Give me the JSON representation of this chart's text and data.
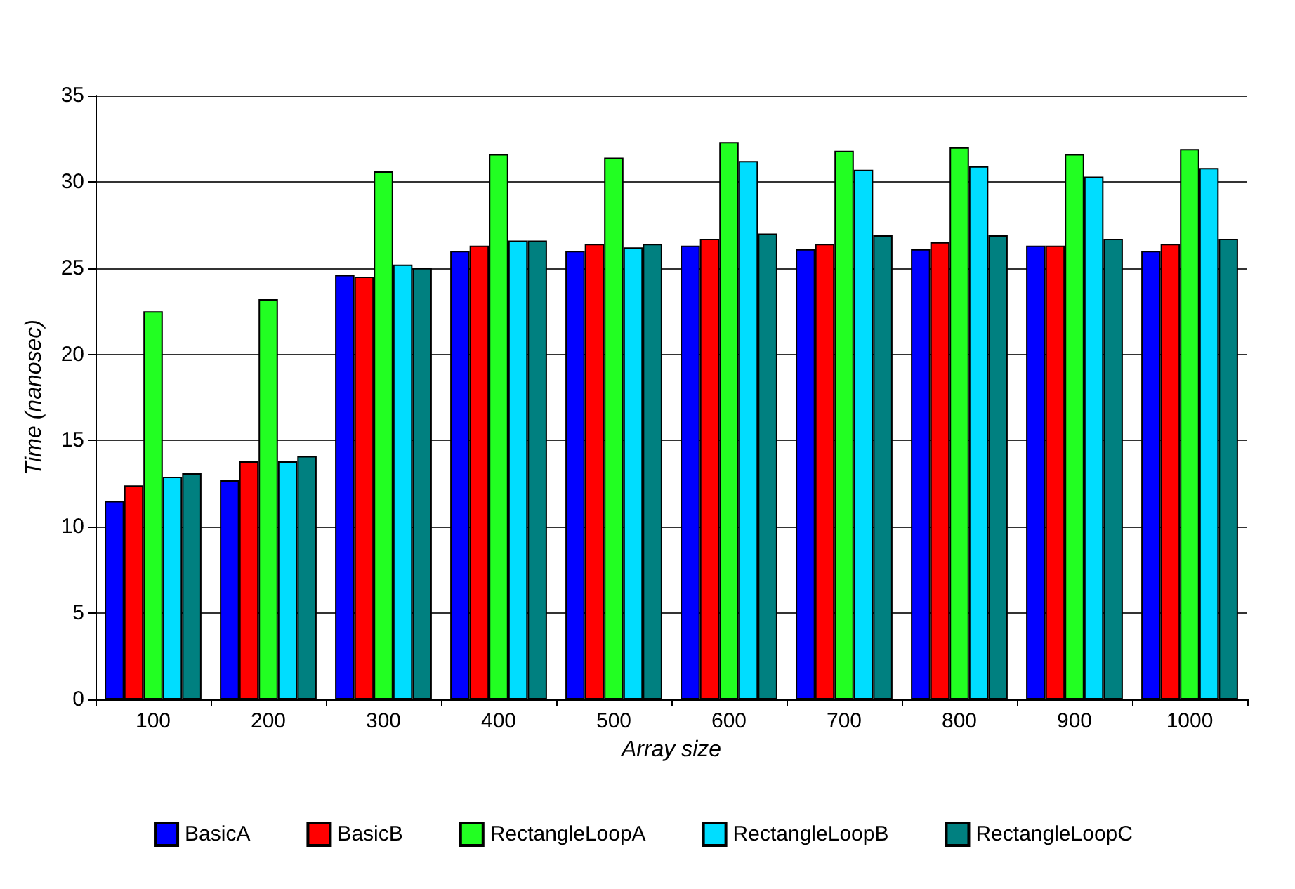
{
  "chart_data": {
    "type": "bar",
    "xlabel": "Array size",
    "ylabel": "Time (nanosec)",
    "categories": [
      "100",
      "200",
      "300",
      "400",
      "500",
      "600",
      "700",
      "800",
      "900",
      "1000"
    ],
    "series": [
      {
        "name": "BasicA",
        "color": "#0000ff",
        "values": [
          11.5,
          12.7,
          24.6,
          26.0,
          26.0,
          26.3,
          26.1,
          26.1,
          26.3,
          26.0
        ]
      },
      {
        "name": "BasicB",
        "color": "#ff0000",
        "values": [
          12.4,
          13.8,
          24.5,
          26.3,
          26.4,
          26.7,
          26.4,
          26.5,
          26.3,
          26.4
        ]
      },
      {
        "name": "RectangleLoopA",
        "color": "#22ff22",
        "values": [
          22.5,
          23.2,
          30.6,
          31.6,
          31.4,
          32.3,
          31.8,
          32.0,
          31.6,
          31.9
        ]
      },
      {
        "name": "RectangleLoopB",
        "color": "#00ddff",
        "values": [
          12.9,
          13.8,
          25.2,
          26.6,
          26.2,
          31.2,
          30.7,
          30.9,
          30.3,
          30.8
        ]
      },
      {
        "name": "RectangleLoopC",
        "color": "#008080",
        "values": [
          13.1,
          14.1,
          25.0,
          26.6,
          26.4,
          27.0,
          26.9,
          26.9,
          26.7,
          26.7
        ]
      }
    ],
    "ylim": [
      0,
      35
    ],
    "yticks": [
      0,
      5,
      10,
      15,
      20,
      25,
      30,
      35
    ],
    "grid": "y",
    "legend": "bottom"
  }
}
